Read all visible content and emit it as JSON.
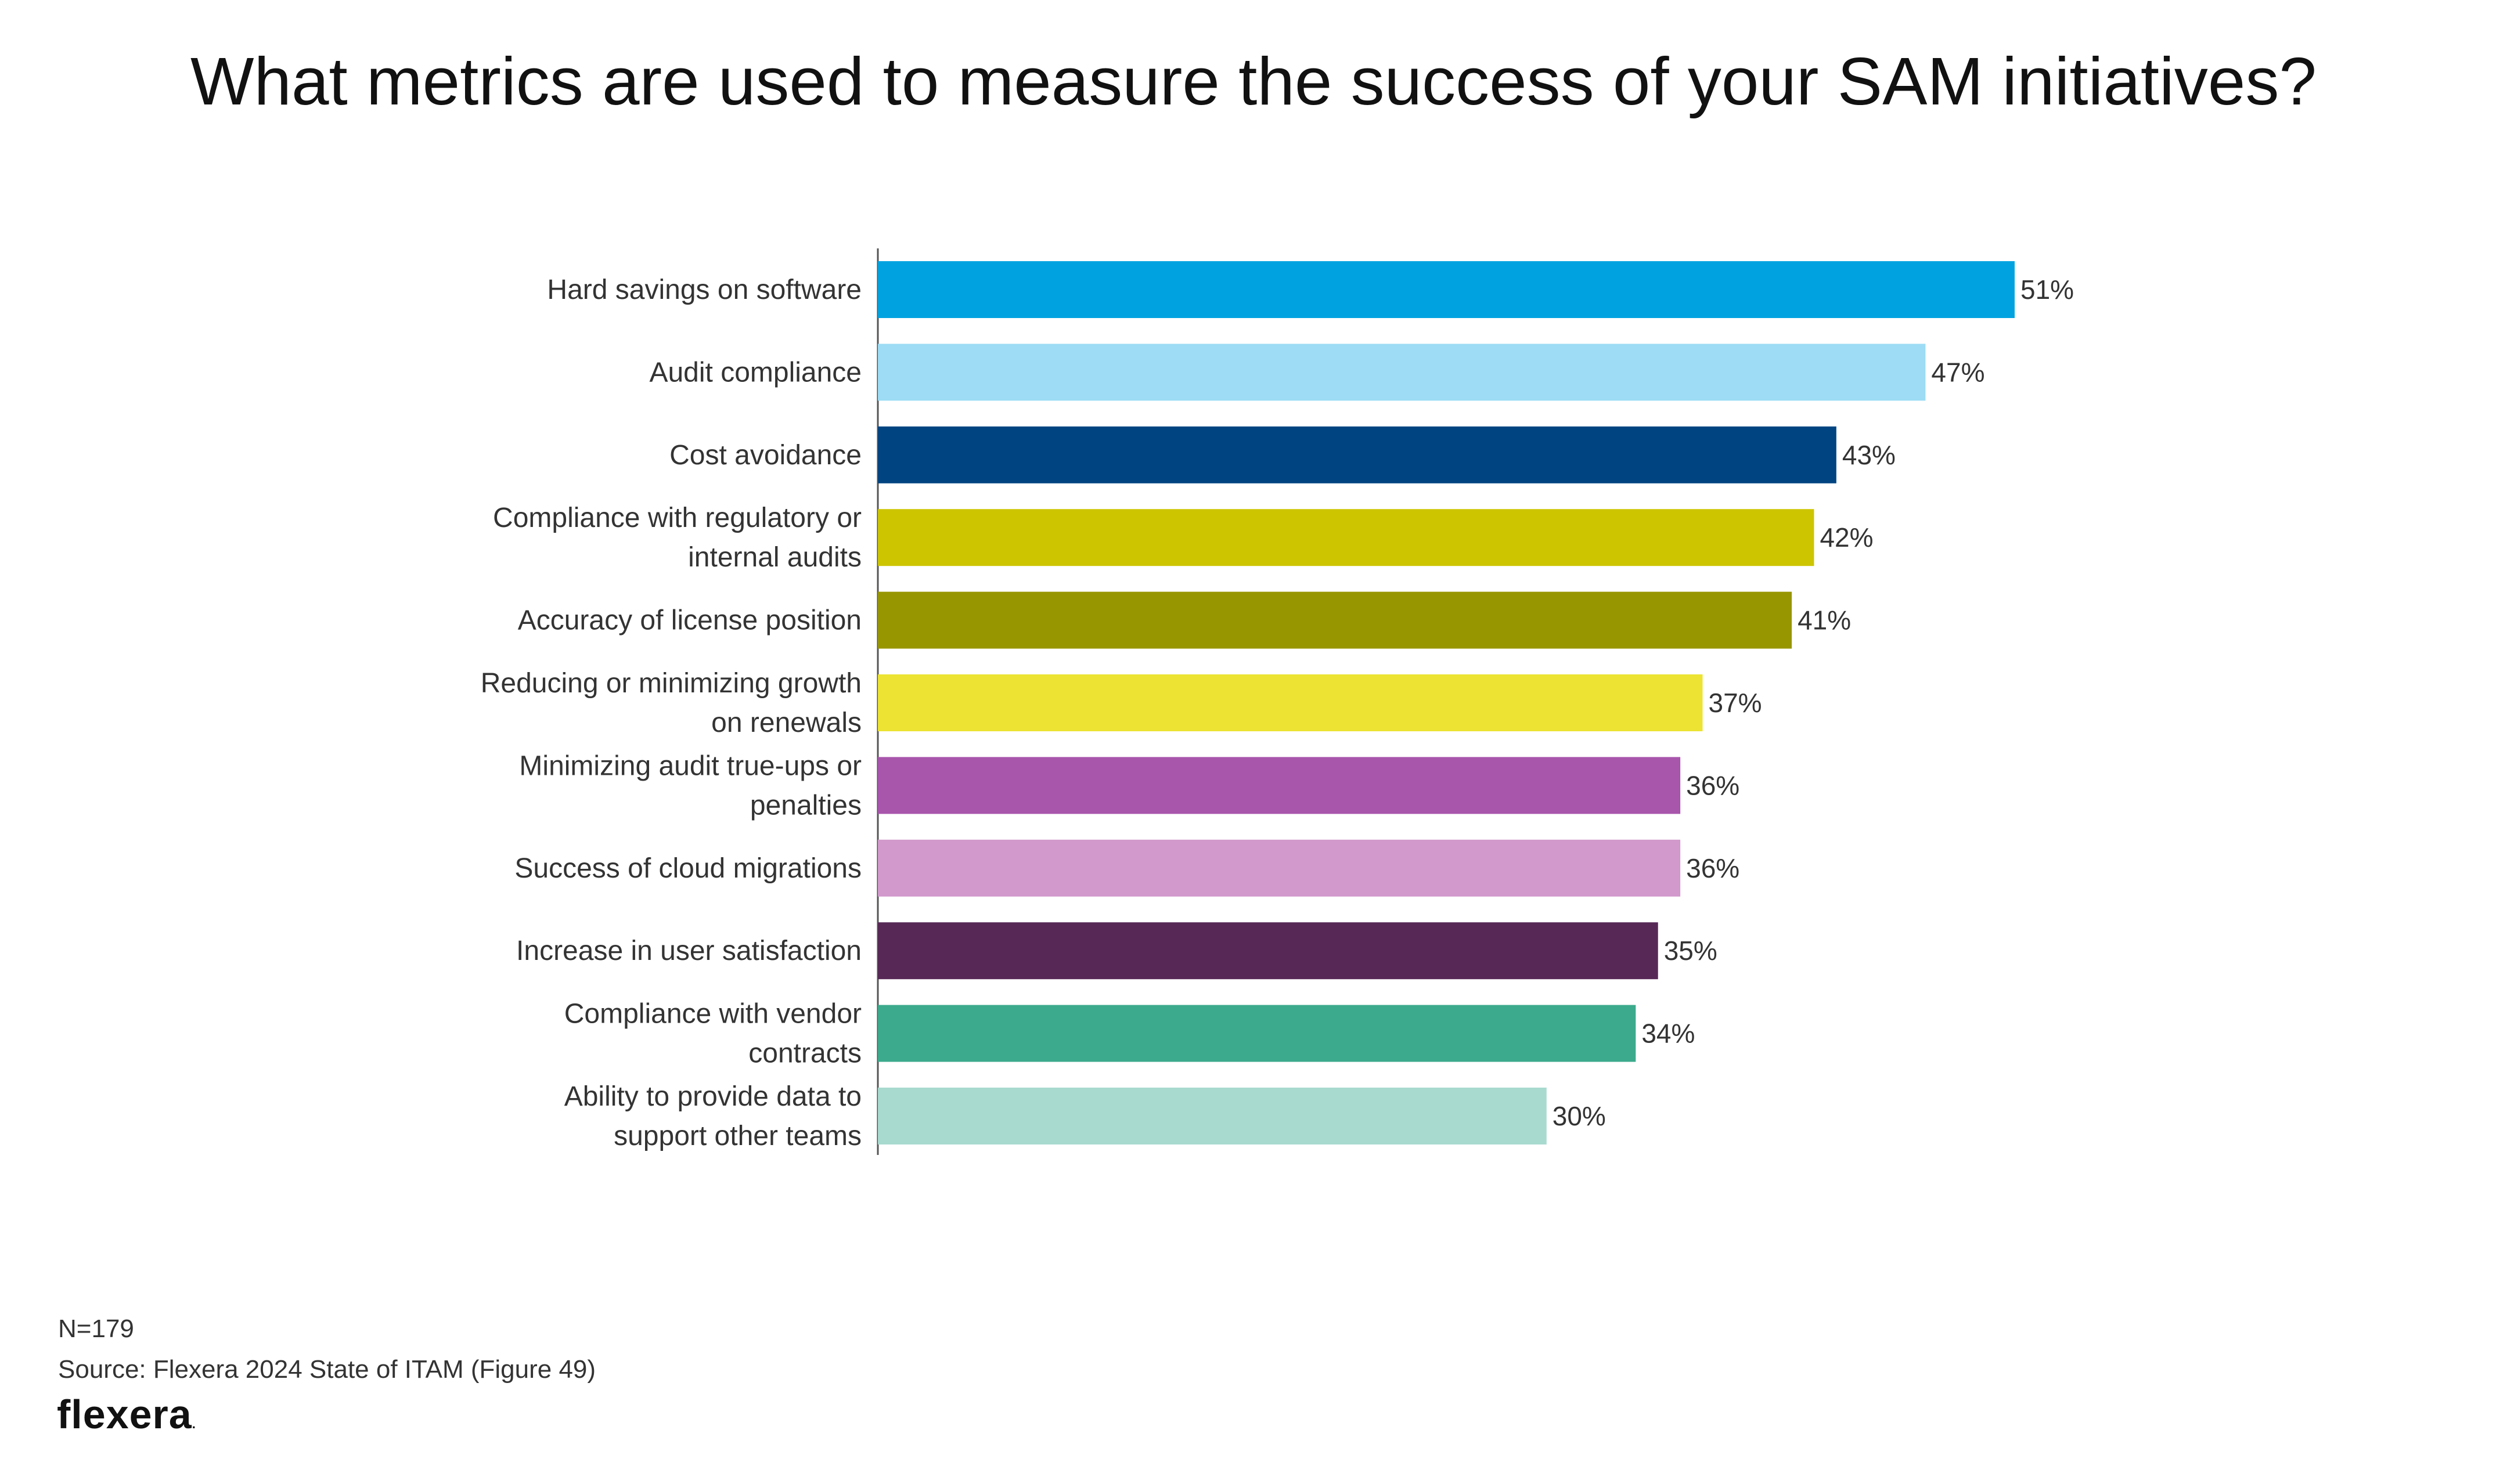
{
  "title": "What metrics are used to measure the success of your SAM initiatives?",
  "chart_data": {
    "type": "bar",
    "orientation": "horizontal",
    "title": "What metrics are used to measure the success of your SAM initiatives?",
    "categories": [
      [
        "Hard savings on software"
      ],
      [
        "Audit compliance"
      ],
      [
        "Cost avoidance"
      ],
      [
        "Compliance with regulatory or",
        "internal audits"
      ],
      [
        "Accuracy of license position"
      ],
      [
        "Reducing or minimizing growth",
        "on renewals"
      ],
      [
        "Minimizing audit true-ups or",
        "penalties"
      ],
      [
        "Success of cloud migrations"
      ],
      [
        "Increase in user satisfaction"
      ],
      [
        "Compliance with vendor",
        "contracts"
      ],
      [
        "Ability to provide data to",
        "support other teams"
      ]
    ],
    "values": [
      51,
      47,
      43,
      42,
      41,
      37,
      36,
      36,
      35,
      34,
      30
    ],
    "value_labels": [
      "51%",
      "47%",
      "43%",
      "42%",
      "41%",
      "37%",
      "36%",
      "36%",
      "35%",
      "34%",
      "30%"
    ],
    "colors": [
      "#00A3E0",
      "#9DDCF4",
      "#004481",
      "#CDC500",
      "#989600",
      "#ECE333",
      "#A855AC",
      "#D199CC",
      "#572856",
      "#3CAA8C",
      "#A9DACF"
    ],
    "xlabel": "",
    "ylabel": "",
    "xlim": [
      0,
      51
    ],
    "grid": false
  },
  "footnotes": {
    "n": "N=179",
    "source": "Source: Flexera 2024 State of ITAM (Figure 49)"
  },
  "logo": {
    "text": "flexera",
    "mark": "."
  }
}
